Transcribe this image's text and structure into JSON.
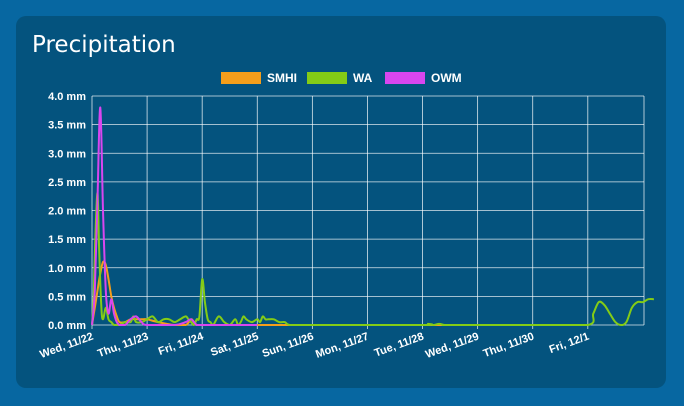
{
  "card": {
    "title": "Precipitation"
  },
  "chart_data": {
    "type": "line",
    "title": "",
    "xlabel": "",
    "ylabel": "",
    "ylim": [
      0,
      4
    ],
    "yticks": [
      "0.0 mm",
      "0.5 mm",
      "1.0 mm",
      "1.5 mm",
      "2.0 mm",
      "2.5 mm",
      "3.0 mm",
      "3.5 mm",
      "4.0 mm"
    ],
    "xticks": [
      "Wed, 11/22",
      "Thu, 11/23",
      "Fri, 11/24",
      "Sat, 11/25",
      "Sun, 11/26",
      "Mon, 11/27",
      "Tue, 11/28",
      "Wed, 11/29",
      "Thu, 11/30",
      "Fri, 12/1"
    ],
    "grid": true,
    "legend_position": "top",
    "colors": {
      "SMHI": "#f59e1b",
      "WA": "#84cc16",
      "OWM": "#d946ef",
      "grid": "#ffffff",
      "text": "#ffffff"
    },
    "series": [
      {
        "name": "SMHI",
        "x": [
          0,
          0.05,
          0.1,
          0.15,
          0.2,
          0.25,
          0.3,
          0.35,
          0.4,
          0.45,
          0.5,
          0.6,
          0.7,
          0.8,
          0.9,
          1.0,
          1.2,
          1.5,
          1.7,
          1.8,
          1.85,
          1.9,
          2.0,
          2.2,
          2.5,
          3.0,
          4.0,
          5.0,
          6.0,
          7.0
        ],
        "values": [
          0,
          0.3,
          0.6,
          0.9,
          1.1,
          1.05,
          0.8,
          0.5,
          0.3,
          0.15,
          0.05,
          0.05,
          0.1,
          0.1,
          0.1,
          0.1,
          0.05,
          0,
          0,
          0.1,
          0.05,
          0,
          0,
          0,
          0,
          0,
          0,
          0,
          0,
          0
        ]
      },
      {
        "name": "WA",
        "x": [
          0,
          0.03,
          0.06,
          0.1,
          0.13,
          0.17,
          0.2,
          0.25,
          0.3,
          0.35,
          0.4,
          0.45,
          0.5,
          0.6,
          0.7,
          0.75,
          0.8,
          0.9,
          1.0,
          1.1,
          1.2,
          1.3,
          1.4,
          1.5,
          1.6,
          1.7,
          1.75,
          1.8,
          1.85,
          1.9,
          1.95,
          2.0,
          2.05,
          2.1,
          2.15,
          2.2,
          2.3,
          2.4,
          2.5,
          2.6,
          2.65,
          2.7,
          2.75,
          2.8,
          2.9,
          3.0,
          3.05,
          3.1,
          3.15,
          3.2,
          3.3,
          3.4,
          3.5,
          3.6,
          4.0,
          6.0,
          6.1,
          6.2,
          6.3,
          6.4,
          6.5,
          8.0,
          9.0,
          9.1,
          9.2,
          9.3,
          9.4,
          9.5,
          9.6,
          9.7,
          9.8,
          9.9,
          10.0,
          10.1,
          10.2
        ],
        "values": [
          0,
          0.5,
          1.5,
          2.3,
          1.3,
          0.3,
          0.1,
          0.3,
          0.1,
          0.05,
          0,
          0,
          0,
          0.05,
          0.05,
          0.15,
          0.05,
          0.05,
          0.1,
          0.15,
          0.05,
          0.1,
          0.1,
          0.05,
          0.1,
          0.15,
          0.1,
          0.05,
          0,
          0.1,
          0.15,
          0.8,
          0.4,
          0.1,
          0.05,
          0,
          0.15,
          0.05,
          0,
          0.1,
          0,
          0.05,
          0.15,
          0.1,
          0.05,
          0.1,
          0.05,
          0.15,
          0.1,
          0.1,
          0.1,
          0.05,
          0.05,
          0,
          0,
          0,
          0.02,
          0,
          0.02,
          0,
          0,
          0,
          0,
          0.2,
          0.4,
          0.35,
          0.2,
          0.05,
          0,
          0.05,
          0.3,
          0.4,
          0.4,
          0.45,
          0.45
        ]
      },
      {
        "name": "OWM",
        "x": [
          0,
          0.05,
          0.1,
          0.15,
          0.2,
          0.25,
          0.3,
          0.35,
          0.4,
          0.45,
          0.5,
          0.6,
          0.7,
          0.8,
          0.9,
          1.0,
          1.5,
          1.7,
          1.8,
          1.9,
          2.0,
          3.0
        ],
        "values": [
          0,
          0.6,
          2.2,
          3.8,
          2.0,
          0.6,
          0.2,
          0.45,
          0.2,
          0.05,
          0,
          0,
          0.1,
          0.15,
          0.05,
          0,
          0,
          0.05,
          0.1,
          0,
          0,
          0
        ]
      }
    ]
  }
}
